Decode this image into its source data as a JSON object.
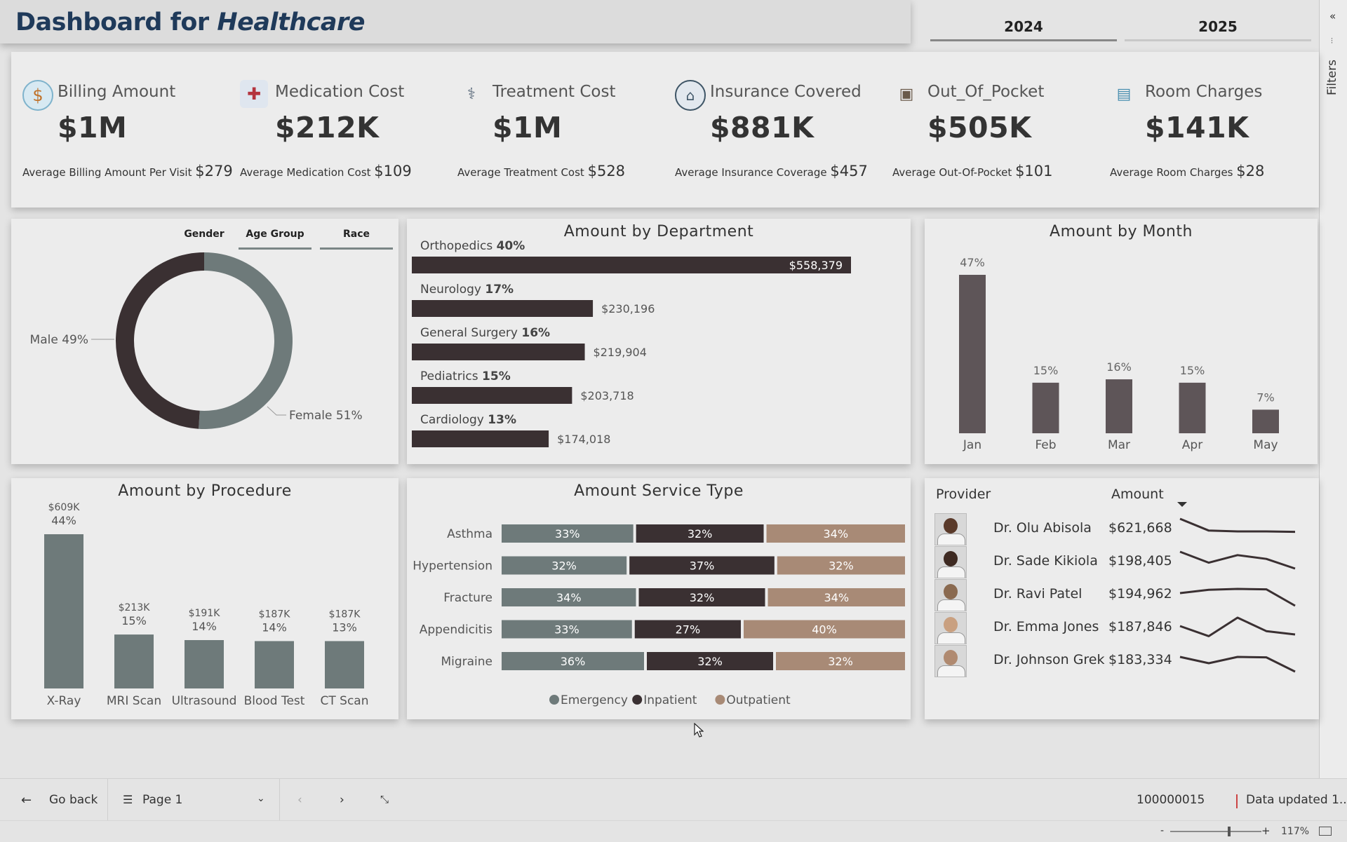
{
  "header": {
    "title_prefix": "Dashboard for ",
    "title_emph": "Healthcare",
    "years": [
      "2024",
      "2025"
    ]
  },
  "filters_label": "Filters",
  "kpis": [
    {
      "icon": "billing-icon",
      "label": "Billing Amount",
      "value": "$1M",
      "avg_label": "Average Billing Amount Per Visit",
      "avg_value": "$279"
    },
    {
      "icon": "medication-icon",
      "label": "Medication Cost",
      "value": "$212K",
      "avg_label": "Average Medication Cost",
      "avg_value": "$109"
    },
    {
      "icon": "treatment-icon",
      "label": "Treatment Cost",
      "value": "$1M",
      "avg_label": "Average Treatment Cost",
      "avg_value": "$528"
    },
    {
      "icon": "insurance-icon",
      "label": "Insurance Covered",
      "value": "$881K",
      "avg_label": "Average Insurance Coverage",
      "avg_value": "$457"
    },
    {
      "icon": "wallet-icon",
      "label": "Out_Of_Pocket",
      "value": "$505K",
      "avg_label": "Average Out-Of-Pocket",
      "avg_value": "$101"
    },
    {
      "icon": "room-icon",
      "label": "Room Charges",
      "value": "$141K",
      "avg_label": "Average Room Charges",
      "avg_value": "$28"
    }
  ],
  "demographics": {
    "tabs": [
      "Gender",
      "Age Group",
      "Race"
    ],
    "active_tab": "Gender"
  },
  "providers": {
    "col_provider": "Provider",
    "col_amount": "Amount",
    "rows": [
      {
        "name": "Dr. Olu Abisola",
        "amount": "$621,668",
        "trend": [
          6.0,
          3.2,
          3.0,
          3.0,
          2.9
        ]
      },
      {
        "name": "Dr. Sade Kikiola",
        "amount": "$198,405",
        "trend": [
          6.0,
          3.4,
          5.2,
          4.3,
          2.0
        ]
      },
      {
        "name": "Dr. Ravi Patel",
        "amount": "$194,962",
        "trend": [
          4.0,
          4.8,
          5.0,
          4.9,
          1.0
        ]
      },
      {
        "name": "Dr. Emma Jones",
        "amount": "$187,846",
        "trend": [
          4.0,
          1.6,
          6.0,
          2.8,
          2.0
        ]
      },
      {
        "name": "Dr. Johnson Grek",
        "amount": "$183,334",
        "trend": [
          4.5,
          3.0,
          4.5,
          4.4,
          1.0
        ]
      }
    ]
  },
  "bottom_bar": {
    "back_label": "Go back",
    "page_label": "Page 1",
    "record_id": "100000015",
    "data_updated": "Data updated 1..."
  },
  "status_bar": {
    "zoom_minus": "-",
    "zoom_plus": "+",
    "zoom_level": "117%",
    "zoom_level_value": 117
  },
  "colors": {
    "dark": "#3a3032",
    "slate": "#6e7a7a",
    "tan": "#a88a76",
    "month_bar": "#5e5558",
    "title_blue": "#1f3a5a"
  },
  "chart_data": [
    {
      "id": "gender",
      "type": "pie",
      "title": "",
      "categories": [
        "Male",
        "Female"
      ],
      "values": [
        49,
        51
      ],
      "labels": [
        "Male 49%",
        "Female 51%"
      ],
      "colors": [
        "#3a3032",
        "#6e7a7a"
      ],
      "donut": true
    },
    {
      "id": "department",
      "type": "bar",
      "orientation": "horizontal",
      "title": "Amount by Department",
      "categories": [
        "Orthopedics",
        "Neurology",
        "General Surgery",
        "Pediatrics",
        "Cardiology"
      ],
      "percents": [
        "40%",
        "17%",
        "16%",
        "15%",
        "13%"
      ],
      "values": [
        558379,
        230196,
        219904,
        203718,
        174018
      ],
      "value_labels": [
        "$558,379",
        "$230,196",
        "$219,904",
        "$203,718",
        "$174,018"
      ],
      "color": "#3a3032"
    },
    {
      "id": "month",
      "type": "bar",
      "title": "Amount by Month",
      "categories": [
        "Jan",
        "Feb",
        "Mar",
        "Apr",
        "May"
      ],
      "values": [
        47,
        15,
        16,
        15,
        7
      ],
      "value_labels": [
        "47%",
        "15%",
        "16%",
        "15%",
        "7%"
      ],
      "color": "#5e5558"
    },
    {
      "id": "procedure",
      "type": "bar",
      "title": "Amount by Procedure",
      "categories": [
        "X-Ray",
        "MRI Scan",
        "Ultrasound",
        "Blood Test",
        "CT Scan"
      ],
      "values": [
        609,
        213,
        191,
        187,
        187
      ],
      "amount_labels": [
        "$609K",
        "$213K",
        "$191K",
        "$187K",
        "$187K"
      ],
      "percent_labels": [
        "44%",
        "15%",
        "14%",
        "14%",
        "13%"
      ],
      "color": "#6e7a7a"
    },
    {
      "id": "service",
      "type": "bar",
      "stacked": true,
      "orientation": "horizontal",
      "title": "Amount Service Type",
      "categories": [
        "Asthma",
        "Hypertension",
        "Fracture",
        "Appendicitis",
        "Migraine"
      ],
      "series": [
        {
          "name": "Emergency",
          "color": "#6e7a7a",
          "values": [
            33,
            32,
            34,
            33,
            36
          ]
        },
        {
          "name": "Inpatient",
          "color": "#3a3032",
          "values": [
            32,
            37,
            32,
            27,
            32
          ]
        },
        {
          "name": "Outpatient",
          "color": "#a88a76",
          "values": [
            34,
            32,
            34,
            40,
            32
          ]
        }
      ],
      "legend": "bottom"
    }
  ]
}
